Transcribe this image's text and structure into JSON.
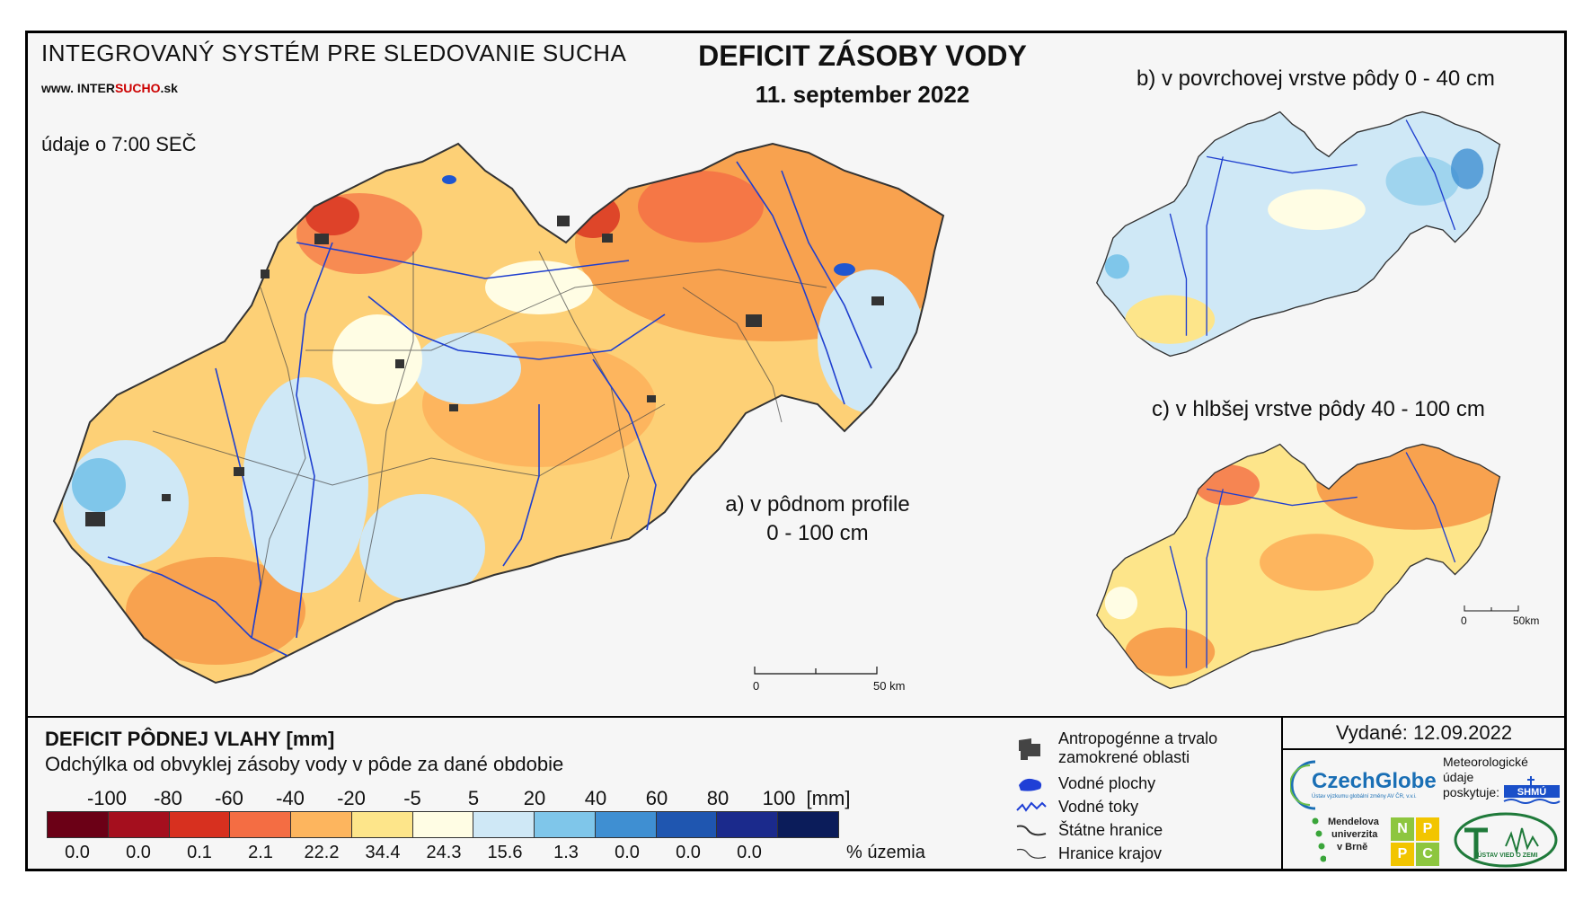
{
  "header": {
    "system_title": "INTEGROVANÝ SYSTÉM PRE SLEDOVANIE SUCHA",
    "website_prefix": "www. INTER",
    "website_red": "SUCHO",
    "website_suffix": ".sk",
    "data_time": "údaje o 7:00 SEČ",
    "main_title": "DEFICIT ZÁSOBY VODY",
    "date": "11. september 2022"
  },
  "maps": {
    "a_label_line1": "a) v pôdnom profile",
    "a_label_line2": "0 - 100 cm",
    "b_label": "b) v povrchovej vrstve pôdy 0 - 40 cm",
    "c_label": "c) v hlbšej vrstve pôdy 40 - 100 cm",
    "scale_main_zero": "0",
    "scale_main_end": "50 km",
    "scale_small_zero": "0",
    "scale_small_end": "50km"
  },
  "legend": {
    "title": "DEFICIT PÔDNEJ VLAHY [mm]",
    "subtitle": "Odchýlka od obvyklej zásoby vody v pôde za dané obdobie",
    "class_labels": [
      "-100",
      "-80",
      "-60",
      "-40",
      "-20",
      "-5",
      "5",
      "20",
      "40",
      "60",
      "80",
      "100"
    ],
    "unit": "[mm]",
    "colors": [
      "#6b0016",
      "#a50f1e",
      "#d7301f",
      "#f46d43",
      "#fdb55e",
      "#fde58a",
      "#fffde4",
      "#cfe8f6",
      "#7fc6ea",
      "#3f8fd2",
      "#1f56b0",
      "#1b2a8c",
      "#0b1c5a"
    ],
    "percentages": [
      "0.0",
      "0.0",
      "0.1",
      "2.1",
      "22.2",
      "34.4",
      "24.3",
      "15.6",
      "1.3",
      "0.0",
      "0.0",
      "0.0"
    ],
    "percent_unit": "% územia",
    "symbols": [
      {
        "icon": "urban-area-icon",
        "label_line1": "Antropogénne a trvalo",
        "label_line2": "zamokrené oblasti"
      },
      {
        "icon": "water-body-icon",
        "label_line1": "Vodné plochy"
      },
      {
        "icon": "river-icon",
        "label_line1": "Vodné toky"
      },
      {
        "icon": "state-border-icon",
        "label_line1": "Štátne hranice"
      },
      {
        "icon": "region-border-icon",
        "label_line1": "Hranice krajov"
      }
    ]
  },
  "footer": {
    "issued": "Vydané: 12.09.2022",
    "czechglobe": "CzechGlobe",
    "czechglobe_sub": "Ústav výzkumu globální změny AV ČR, v.v.i.",
    "meteo_line1": "Meteorologické",
    "meteo_line2": "údaje",
    "meteo_line3": "poskytuje:",
    "shmu": "SHMÚ",
    "mendel_line1": "Mendelova",
    "mendel_line2": "univerzita",
    "mendel_line3": "v Brně",
    "nppc": [
      "N",
      "P",
      "P",
      "C"
    ],
    "uvz": "ÚSTAV VIED O ZEMI"
  }
}
